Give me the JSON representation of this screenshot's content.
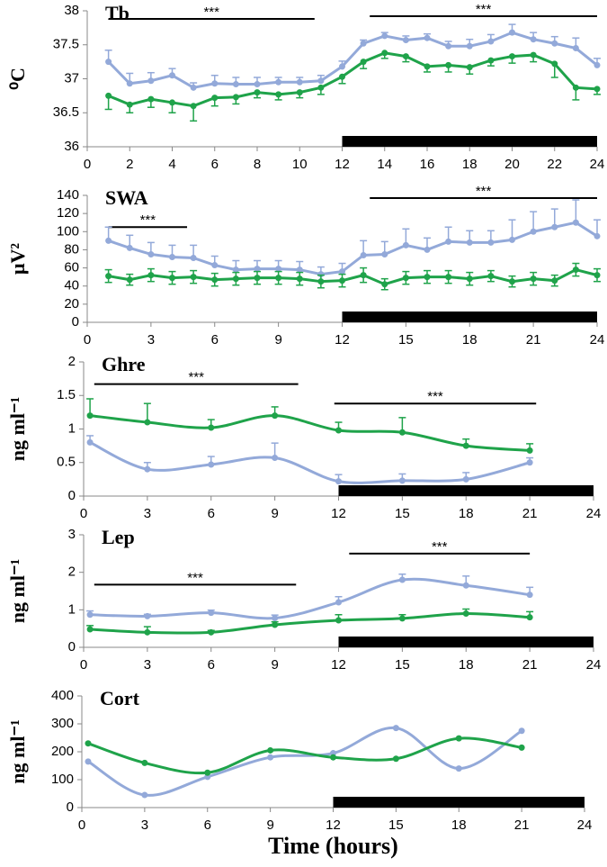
{
  "chart_data": [
    {
      "type": "line",
      "title": "Tb",
      "ylabel": "⁰C",
      "smooth": false,
      "x": [
        1,
        2,
        3,
        4,
        5,
        6,
        7,
        8,
        9,
        10,
        11,
        12,
        13,
        14,
        15,
        16,
        17,
        18,
        19,
        20,
        21,
        22,
        23,
        24
      ],
      "xlim": [
        0,
        24
      ],
      "xticks": [
        0,
        2,
        4,
        6,
        8,
        10,
        12,
        14,
        16,
        18,
        20,
        22,
        24
      ],
      "ylim": [
        36,
        38
      ],
      "yticks": [
        36,
        36.5,
        37,
        37.5,
        38
      ],
      "dark_period": [
        12,
        24
      ],
      "annotations": [
        {
          "text": "***",
          "x": [
            1,
            10.7
          ],
          "y": 37.88
        },
        {
          "text": "***",
          "x": [
            13.3,
            24
          ],
          "y": 37.92
        }
      ],
      "series": [
        {
          "color": "#93a9d9",
          "error_direction": "up",
          "values": [
            37.25,
            36.93,
            36.97,
            37.05,
            36.87,
            36.93,
            36.92,
            36.92,
            36.95,
            36.95,
            36.97,
            37.18,
            37.52,
            37.63,
            37.57,
            37.6,
            37.48,
            37.48,
            37.55,
            37.68,
            37.58,
            37.52,
            37.45,
            37.2
          ],
          "errors": [
            0.17,
            0.15,
            0.12,
            0.1,
            0.07,
            0.12,
            0.1,
            0.1,
            0.07,
            0.07,
            0.08,
            0.08,
            0.05,
            0.05,
            0.06,
            0.06,
            0.07,
            0.1,
            0.1,
            0.12,
            0.1,
            0.1,
            0.15,
            0.1
          ]
        },
        {
          "color": "#1fa34a",
          "error_direction": "down",
          "values": [
            36.75,
            36.62,
            36.7,
            36.65,
            36.6,
            36.72,
            36.73,
            36.8,
            36.77,
            36.8,
            36.87,
            37.03,
            37.25,
            37.38,
            37.33,
            37.18,
            37.2,
            37.17,
            37.27,
            37.33,
            37.35,
            37.22,
            36.87,
            36.85
          ],
          "errors": [
            0.2,
            0.12,
            0.12,
            0.15,
            0.22,
            0.12,
            0.1,
            0.08,
            0.08,
            0.08,
            0.1,
            0.1,
            0.1,
            0.08,
            0.08,
            0.08,
            0.1,
            0.1,
            0.08,
            0.1,
            0.1,
            0.2,
            0.18,
            0.08
          ]
        }
      ]
    },
    {
      "type": "line",
      "title": "SWA",
      "ylabel": "μV²",
      "smooth": false,
      "x": [
        1,
        2,
        3,
        4,
        5,
        6,
        7,
        8,
        9,
        10,
        11,
        12,
        13,
        14,
        15,
        16,
        17,
        18,
        19,
        20,
        21,
        22,
        23,
        24
      ],
      "xlim": [
        0,
        24
      ],
      "xticks": [
        0,
        3,
        6,
        9,
        12,
        15,
        18,
        21,
        24
      ],
      "ylim": [
        0,
        140
      ],
      "yticks": [
        0,
        20,
        40,
        60,
        80,
        100,
        120,
        140
      ],
      "dark_period": [
        12,
        24
      ],
      "annotations": [
        {
          "text": "***",
          "x": [
            1,
            4.7
          ],
          "y": 105
        },
        {
          "text": "***",
          "x": [
            13.3,
            24
          ],
          "y": 137
        }
      ],
      "series": [
        {
          "color": "#93a9d9",
          "error_direction": "up",
          "values": [
            90,
            82,
            75,
            72,
            71,
            63,
            58,
            59,
            59,
            58,
            53,
            56,
            74,
            75,
            85,
            80,
            89,
            88,
            88,
            91,
            100,
            105,
            110,
            95
          ],
          "errors": [
            15,
            14,
            13,
            13,
            14,
            10,
            10,
            9,
            9,
            9,
            8,
            9,
            16,
            14,
            18,
            13,
            16,
            13,
            13,
            22,
            22,
            20,
            25,
            18
          ]
        },
        {
          "color": "#1fa34a",
          "error_direction": "both",
          "values": [
            51,
            47,
            52,
            49,
            50,
            47,
            48,
            49,
            49,
            48,
            45,
            46,
            52,
            42,
            49,
            50,
            50,
            48,
            51,
            45,
            48,
            46,
            58,
            52
          ],
          "errors": [
            7,
            6,
            7,
            7,
            7,
            7,
            7,
            7,
            7,
            7,
            7,
            7,
            8,
            6,
            7,
            7,
            7,
            7,
            6,
            6,
            7,
            6,
            7,
            7
          ]
        }
      ]
    },
    {
      "type": "line",
      "title": "Ghre",
      "ylabel": "ng ml⁻¹",
      "smooth": true,
      "x": [
        0.3,
        3,
        6,
        9,
        12,
        15,
        18,
        21
      ],
      "xlim": [
        0,
        24
      ],
      "xticks": [
        0,
        3,
        6,
        9,
        12,
        15,
        18,
        21,
        24
      ],
      "ylim": [
        0,
        2
      ],
      "yticks": [
        0,
        0.5,
        1,
        1.5,
        2
      ],
      "dark_period": [
        12,
        24
      ],
      "annotations": [
        {
          "text": "***",
          "x": [
            0.5,
            10.1
          ],
          "y": 1.67
        },
        {
          "text": "***",
          "x": [
            11.8,
            21.3
          ],
          "y": 1.38
        }
      ],
      "series": [
        {
          "color": "#1fa34a",
          "error_direction": "up",
          "values": [
            1.2,
            1.1,
            1.02,
            1.2,
            0.98,
            0.95,
            0.75,
            0.68
          ],
          "errors": [
            0.25,
            0.28,
            0.12,
            0.13,
            0.12,
            0.22,
            0.1,
            0.1
          ]
        },
        {
          "color": "#93a9d9",
          "error_direction": "up",
          "values": [
            0.8,
            0.4,
            0.47,
            0.57,
            0.22,
            0.23,
            0.25,
            0.5
          ],
          "errors": [
            0.1,
            0.1,
            0.12,
            0.22,
            0.1,
            0.1,
            0.1,
            0.07
          ]
        }
      ]
    },
    {
      "type": "line",
      "title": "Lep",
      "ylabel": "ng ml⁻¹",
      "smooth": true,
      "x": [
        0.3,
        3,
        6,
        9,
        12,
        15,
        18,
        21
      ],
      "xlim": [
        0,
        24
      ],
      "xticks": [
        0,
        3,
        6,
        9,
        12,
        15,
        18,
        21,
        24
      ],
      "ylim": [
        0,
        3
      ],
      "yticks": [
        0,
        1,
        2,
        3
      ],
      "dark_period": [
        12,
        24
      ],
      "annotations": [
        {
          "text": "***",
          "x": [
            0.5,
            10
          ],
          "y": 1.67
        },
        {
          "text": "***",
          "x": [
            12.5,
            21
          ],
          "y": 2.5
        }
      ],
      "series": [
        {
          "color": "#93a9d9",
          "error_direction": "up",
          "values": [
            0.87,
            0.83,
            0.92,
            0.78,
            1.2,
            1.8,
            1.65,
            1.4
          ],
          "errors": [
            0.1,
            0.05,
            0.07,
            0.08,
            0.15,
            0.15,
            0.25,
            0.2
          ]
        },
        {
          "color": "#1fa34a",
          "error_direction": "up",
          "values": [
            0.48,
            0.4,
            0.4,
            0.6,
            0.72,
            0.77,
            0.9,
            0.8
          ],
          "errors": [
            0.1,
            0.15,
            0.05,
            0.08,
            0.15,
            0.1,
            0.12,
            0.15
          ]
        }
      ]
    },
    {
      "type": "line",
      "title": "Cort",
      "ylabel": "ng ml⁻¹",
      "xlabel": "Time (hours)",
      "smooth": true,
      "x": [
        0.3,
        3,
        6,
        9,
        12,
        15,
        18,
        21
      ],
      "xlim": [
        0,
        24
      ],
      "xticks": [
        0,
        3,
        6,
        9,
        12,
        15,
        18,
        21,
        24
      ],
      "ylim": [
        0,
        400
      ],
      "yticks": [
        0,
        100,
        200,
        300,
        400
      ],
      "dark_period": [
        12,
        24
      ],
      "series": [
        {
          "color": "#93a9d9",
          "values": [
            165,
            45,
            110,
            180,
            195,
            285,
            140,
            275
          ]
        },
        {
          "color": "#1fa34a",
          "values": [
            230,
            160,
            125,
            205,
            180,
            175,
            248,
            215
          ]
        }
      ]
    }
  ]
}
